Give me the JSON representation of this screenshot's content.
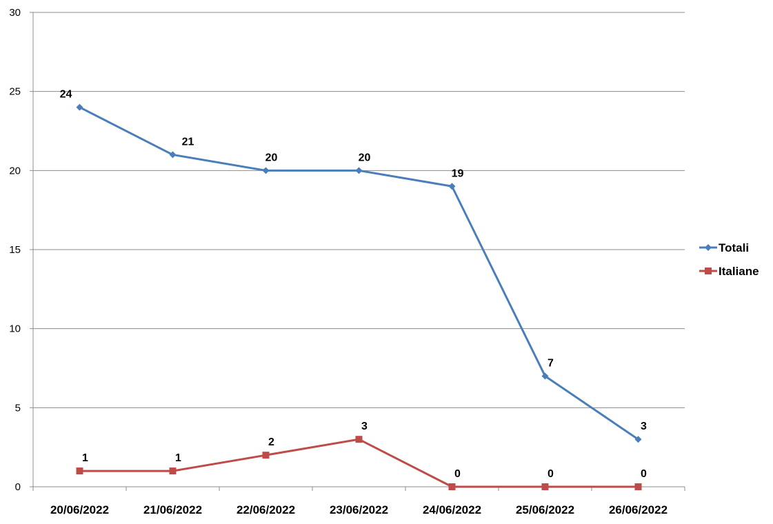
{
  "chart_data": {
    "type": "line",
    "title": "",
    "xlabel": "",
    "ylabel": "",
    "categories": [
      "20/06/2022",
      "21/06/2022",
      "22/06/2022",
      "23/06/2022",
      "24/06/2022",
      "25/06/2022",
      "26/06/2022"
    ],
    "series": [
      {
        "name": "Totali",
        "values": [
          24,
          21,
          20,
          20,
          19,
          7,
          3
        ],
        "color": "#4a7ebb",
        "marker": "diamond"
      },
      {
        "name": "Italiane",
        "values": [
          1,
          1,
          2,
          3,
          0,
          0,
          0
        ],
        "color": "#be4b48",
        "marker": "square"
      }
    ],
    "ylim": [
      0,
      30
    ],
    "yticks": [
      0,
      5,
      10,
      15,
      20,
      25,
      30
    ],
    "grid": true,
    "legend_position": "right",
    "data_labels": true
  }
}
